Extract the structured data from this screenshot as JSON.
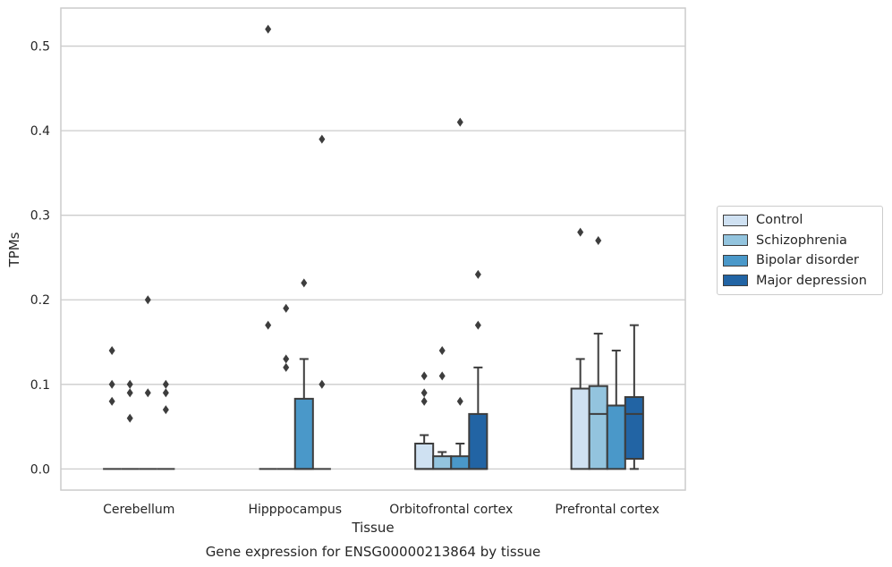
{
  "chart_data": {
    "type": "box",
    "title": "Gene expression for ENSG00000213864 by tissue",
    "xlabel": "Tissue",
    "ylabel": "TPMs",
    "ylim": [
      -0.025,
      0.545
    ],
    "yticks": [
      0.0,
      0.1,
      0.2,
      0.3,
      0.4,
      0.5
    ],
    "ytick_labels": [
      "0.0",
      "0.1",
      "0.2",
      "0.3",
      "0.4",
      "0.5"
    ],
    "grid": true,
    "legend_position": "right",
    "categories": [
      "Cerebellum",
      "Hipppocampus",
      "Orbitofrontal cortex",
      "Prefrontal cortex"
    ],
    "series": [
      {
        "name": "Control",
        "color": "#cfe1f2",
        "boxes": [
          {
            "q1": 0,
            "median": 0,
            "q3": 0,
            "whisker_low": 0,
            "whisker_high": 0,
            "outliers": [
              0.14,
              0.1,
              0.08
            ]
          },
          {
            "q1": 0,
            "median": 0,
            "q3": 0,
            "whisker_low": 0,
            "whisker_high": 0,
            "outliers": [
              0.52,
              0.17
            ]
          },
          {
            "q1": 0,
            "median": 0,
            "q3": 0.03,
            "whisker_low": 0,
            "whisker_high": 0.04,
            "outliers": [
              0.11,
              0.09,
              0.08
            ]
          },
          {
            "q1": 0,
            "median": 0.095,
            "q3": 0.095,
            "whisker_low": 0,
            "whisker_high": 0.13,
            "outliers": [
              0.28
            ]
          }
        ]
      },
      {
        "name": "Schizophrenia",
        "color": "#93c4de",
        "boxes": [
          {
            "q1": 0,
            "median": 0,
            "q3": 0,
            "whisker_low": 0,
            "whisker_high": 0,
            "outliers": [
              0.1,
              0.09,
              0.06
            ]
          },
          {
            "q1": 0,
            "median": 0,
            "q3": 0,
            "whisker_low": 0,
            "whisker_high": 0,
            "outliers": [
              0.19,
              0.13,
              0.12
            ]
          },
          {
            "q1": 0,
            "median": 0,
            "q3": 0.015,
            "whisker_low": 0,
            "whisker_high": 0.02,
            "outliers": [
              0.14,
              0.11
            ]
          },
          {
            "q1": 0,
            "median": 0.065,
            "q3": 0.098,
            "whisker_low": 0,
            "whisker_high": 0.16,
            "outliers": [
              0.27
            ]
          }
        ]
      },
      {
        "name": "Bipolar disorder",
        "color": "#4a98c9",
        "boxes": [
          {
            "q1": 0,
            "median": 0,
            "q3": 0,
            "whisker_low": 0,
            "whisker_high": 0,
            "outliers": [
              0.2,
              0.09
            ]
          },
          {
            "q1": 0,
            "median": 0,
            "q3": 0.083,
            "whisker_low": 0,
            "whisker_high": 0.13,
            "outliers": [
              0.22
            ]
          },
          {
            "q1": 0,
            "median": 0,
            "q3": 0.015,
            "whisker_low": 0,
            "whisker_high": 0.03,
            "outliers": [
              0.41,
              0.08
            ]
          },
          {
            "q1": 0,
            "median": 0.075,
            "q3": 0.075,
            "whisker_low": 0,
            "whisker_high": 0.14,
            "outliers": []
          }
        ]
      },
      {
        "name": "Major depression",
        "color": "#2264a4",
        "boxes": [
          {
            "q1": 0,
            "median": 0,
            "q3": 0,
            "whisker_low": 0,
            "whisker_high": 0,
            "outliers": [
              0.1,
              0.09,
              0.07
            ]
          },
          {
            "q1": 0,
            "median": 0,
            "q3": 0,
            "whisker_low": 0,
            "whisker_high": 0,
            "outliers": [
              0.39,
              0.1
            ]
          },
          {
            "q1": 0,
            "median": 0,
            "q3": 0.065,
            "whisker_low": 0,
            "whisker_high": 0.12,
            "outliers": [
              0.23,
              0.17
            ]
          },
          {
            "q1": 0.012,
            "median": 0.065,
            "q3": 0.085,
            "whisker_low": 0,
            "whisker_high": 0.17,
            "outliers": []
          }
        ]
      }
    ]
  }
}
